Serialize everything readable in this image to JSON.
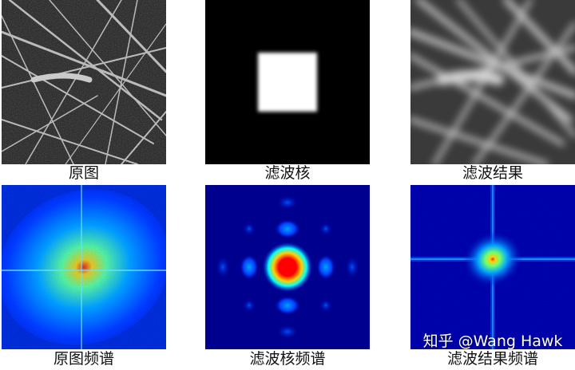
{
  "captions": {
    "original": "原图",
    "kernel": "滤波核",
    "result": "滤波结果",
    "original_spectrum": "原图频谱",
    "kernel_spectrum": "滤波核频谱",
    "result_spectrum": "滤波结果频谱"
  },
  "watermark": "知乎 @Wang Hawk",
  "colors": {
    "background": "#ffffff",
    "spectrum_low": "#00008f",
    "spectrum_peak": "#ff0000",
    "kernel_fill": "#ffffff",
    "kernel_bg": "#000000"
  }
}
